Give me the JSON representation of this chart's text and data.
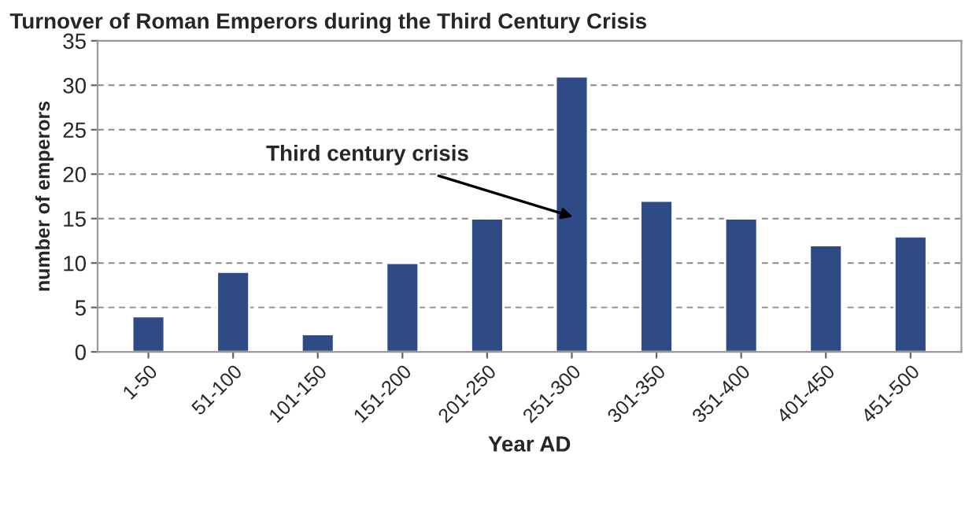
{
  "chart_data": {
    "type": "bar",
    "title": "Turnover of Roman Emperors during the Third Century Crisis",
    "xlabel": "Year AD",
    "ylabel": "number of emperors",
    "categories": [
      "1-50",
      "51-100",
      "101-150",
      "151-200",
      "201-250",
      "251-300",
      "301-350",
      "351-400",
      "401-450",
      "451-500"
    ],
    "values": [
      4,
      9,
      2,
      10,
      15,
      31,
      17,
      15,
      12,
      13
    ],
    "color": "#2f4b86",
    "ylim": [
      0,
      35
    ],
    "yticks": [
      0,
      5,
      10,
      15,
      20,
      25,
      30,
      35
    ],
    "grid": "y",
    "annotations": [
      "Third century crisis"
    ]
  }
}
